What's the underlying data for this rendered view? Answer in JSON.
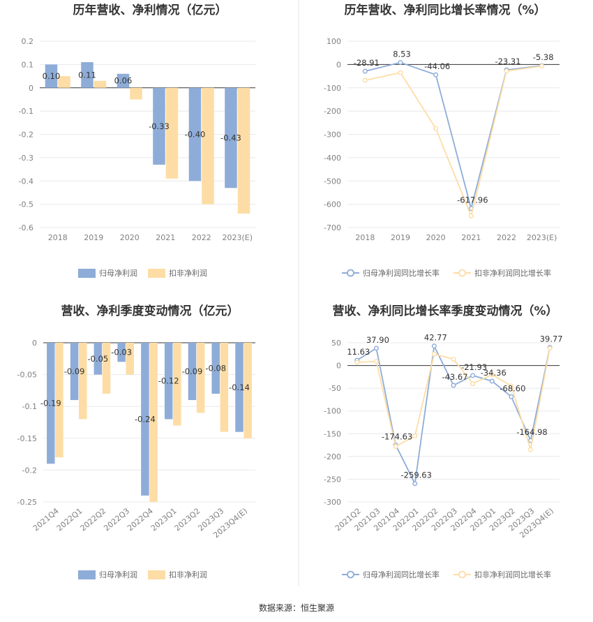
{
  "footer": "数据来源：恒生聚源",
  "colors": {
    "primary": "#8eacd8",
    "secondary": "#fddda5",
    "divider": "#e6e6e6"
  },
  "chart_data": [
    {
      "type": "bar",
      "title": "历年营收、净利情况（亿元）",
      "categories": [
        "2018",
        "2019",
        "2020",
        "2021",
        "2022",
        "2023(E)"
      ],
      "ylim": [
        -0.6,
        0.2
      ],
      "yticks": [
        "0.2",
        "0.1",
        "0",
        "-0.1",
        "-0.2",
        "-0.3",
        "-0.4",
        "-0.5",
        "-0.6"
      ],
      "series": [
        {
          "name": "归母净利润",
          "values": [
            0.1,
            0.11,
            0.06,
            -0.33,
            -0.4,
            -0.43
          ],
          "labels": [
            "0.10",
            "0.11",
            "0.06",
            "-0.33",
            "-0.40",
            "-0.43"
          ]
        },
        {
          "name": "扣非净利润",
          "values": [
            0.05,
            0.03,
            -0.05,
            -0.39,
            -0.5,
            -0.54
          ]
        }
      ]
    },
    {
      "type": "line",
      "title": "历年营收、净利同比增长率情况（%）",
      "categories": [
        "2018",
        "2019",
        "2020",
        "2021",
        "2022",
        "2023(E)"
      ],
      "ylim": [
        -700,
        100
      ],
      "yticks": [
        "100",
        "0",
        "-100",
        "-200",
        "-300",
        "-400",
        "-500",
        "-600",
        "-700"
      ],
      "series": [
        {
          "name": "归母净利润同比增长率",
          "values": [
            -28.91,
            8.53,
            -44.06,
            -617.96,
            -23.31,
            -5.38
          ],
          "labels": [
            "-28.91",
            "8.53",
            "-44.06",
            "-617.96",
            "-23.31",
            "-5.38"
          ]
        },
        {
          "name": "扣非净利润同比增长率",
          "values": [
            -68,
            -35,
            -275,
            -650,
            -28,
            -7
          ]
        }
      ]
    },
    {
      "type": "bar",
      "title": "营收、净利季度变动情况（亿元）",
      "categories": [
        "2021Q4",
        "2022Q1",
        "2022Q2",
        "2022Q3",
        "2022Q4",
        "2023Q1",
        "2023Q2",
        "2023Q3",
        "2023Q4(E)"
      ],
      "ylim": [
        -0.25,
        0
      ],
      "yticks": [
        "0",
        "-0.05",
        "-0.1",
        "-0.15",
        "-0.2",
        "-0.25"
      ],
      "series": [
        {
          "name": "归母净利润",
          "values": [
            -0.19,
            -0.09,
            -0.05,
            -0.03,
            -0.24,
            -0.12,
            -0.09,
            -0.08,
            -0.14
          ],
          "labels": [
            "-0.19",
            "-0.09",
            "-0.05",
            "-0.03",
            "-0.24",
            "-0.12",
            "-0.09",
            "-0.08",
            "-0.14"
          ]
        },
        {
          "name": "扣非净利润",
          "values": [
            -0.18,
            -0.12,
            -0.08,
            -0.05,
            -0.25,
            -0.13,
            -0.11,
            -0.14,
            -0.15
          ]
        }
      ]
    },
    {
      "type": "line",
      "title": "营收、净利同比增长率季度变动情况（%）",
      "categories": [
        "2021Q2",
        "2021Q3",
        "2021Q4",
        "2022Q1",
        "2022Q2",
        "2022Q3",
        "2022Q4",
        "2023Q1",
        "2023Q2",
        "2023Q3",
        "2023Q4(E)"
      ],
      "ylim": [
        -300,
        50
      ],
      "yticks": [
        "50",
        "0",
        "-50",
        "-100",
        "-150",
        "-200",
        "-250",
        "-300"
      ],
      "series": [
        {
          "name": "归母净利润同比增长率",
          "values": [
            11.63,
            37.9,
            -174.63,
            -259.63,
            42.77,
            -43.67,
            -21.93,
            -34.36,
            -68.6,
            -164.98,
            39.77
          ],
          "labels": [
            "11.63",
            "37.90",
            "-174.63",
            "-259.63",
            "42.77",
            "-43.67",
            "-21.93",
            "-34.36",
            "-68.60",
            "-164.98",
            "39.77"
          ]
        },
        {
          "name": "扣非净利润同比增长率",
          "values": [
            7,
            9,
            -178,
            -155,
            25,
            14,
            -40,
            -20,
            -45,
            -185,
            38
          ]
        }
      ]
    }
  ]
}
